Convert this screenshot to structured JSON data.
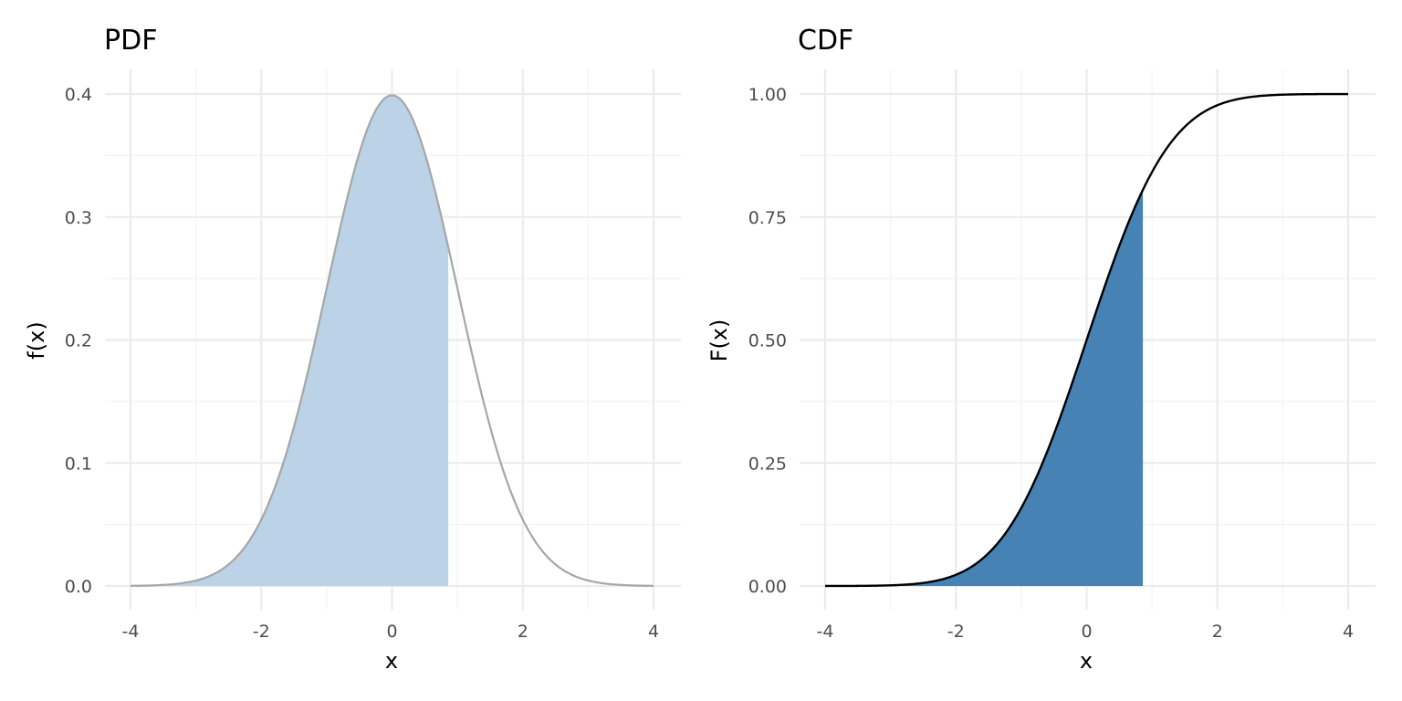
{
  "chart_data": [
    {
      "type": "area",
      "title": "PDF",
      "xlabel": "x",
      "ylabel": "f(x)",
      "xlim": [
        -4,
        4
      ],
      "ylim": [
        0,
        0.4
      ],
      "x_ticks": [
        "-4",
        "-2",
        "0",
        "2",
        "4"
      ],
      "y_ticks": [
        "0.0",
        "0.1",
        "0.2",
        "0.3",
        "0.4"
      ],
      "grid": true,
      "curve": "normal density",
      "shade_to_x": 0.86,
      "line_color": "#a6a6a6",
      "fill_color": "#bcd2e6"
    },
    {
      "type": "area",
      "title": "CDF",
      "xlabel": "x",
      "ylabel": "F(x)",
      "xlim": [
        -4,
        4
      ],
      "ylim": [
        0,
        1
      ],
      "x_ticks": [
        "-4",
        "-2",
        "0",
        "2",
        "4"
      ],
      "y_ticks": [
        "0.00",
        "0.25",
        "0.50",
        "0.75",
        "1.00"
      ],
      "grid": true,
      "curve": "normal cumulative distribution",
      "shade_to_x": 0.86,
      "line_color": "#000000",
      "fill_color": "#4682b4"
    }
  ]
}
